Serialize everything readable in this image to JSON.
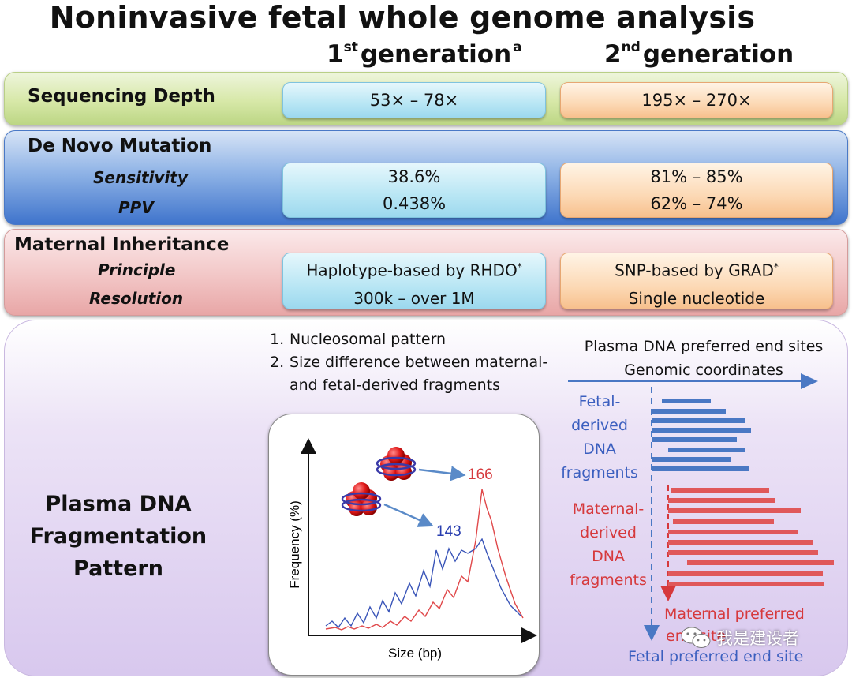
{
  "title": "Noninvasive fetal whole genome analysis",
  "columns": {
    "gen1": {
      "number": "1",
      "ordinal": "st",
      "word": "generation",
      "marker": "a"
    },
    "gen2": {
      "number": "2",
      "ordinal": "nd",
      "word": "generation"
    }
  },
  "sequencing_depth": {
    "label": "Sequencing Depth",
    "gen1": "53× – 78×",
    "gen2": "195× – 270×"
  },
  "de_novo": {
    "label": "De Novo Mutation",
    "sensitivity_label": "Sensitivity",
    "ppv_label": "PPV",
    "gen1_sensitivity": "38.6%",
    "gen1_ppv": "0.438%",
    "gen2_sensitivity": "81% – 85%",
    "gen2_ppv": "62% – 74%"
  },
  "maternal": {
    "label": "Maternal Inheritance",
    "principle_label": "Principle",
    "resolution_label": "Resolution",
    "gen1_principle": "Haplotype-based by RHDO",
    "gen1_resolution": "300k – over 1M",
    "gen2_principle": "SNP-based by GRAD",
    "gen2_resolution": "Single nucleotide",
    "footnote_marker": "*"
  },
  "fragmentation": {
    "label_lines": [
      "Plasma DNA",
      "Fragmentation",
      "Pattern"
    ],
    "list": [
      {
        "n": "1.",
        "text": "Nucleosomal pattern"
      },
      {
        "n": "2.",
        "text": "Size difference between maternal-"
      },
      {
        "n": "",
        "text": "and fetal-derived fragments"
      }
    ],
    "plot": {
      "ylabel": "Frequency (%)",
      "xlabel": "Size (bp)",
      "peak_maternal": "166",
      "peak_fetal": "143"
    },
    "end_sites": {
      "title_1": "Plasma DNA preferred end sites",
      "title_2": "Genomic coordinates",
      "fetal_label": [
        "Fetal-",
        "derived",
        "DNA",
        "fragments"
      ],
      "maternal_label": [
        "Maternal-",
        "derived",
        "DNA",
        "fragments"
      ],
      "maternal_pref_1": "Maternal preferred",
      "maternal_pref_2": "end site",
      "fetal_pref": "Fetal preferred end site"
    },
    "watermark": "我是建设者"
  },
  "colors": {
    "fetal": "#3b5fbf",
    "maternal": "#d6393c",
    "fetal_bar": "#4a78c4",
    "maternal_bar": "#e0585a"
  }
}
